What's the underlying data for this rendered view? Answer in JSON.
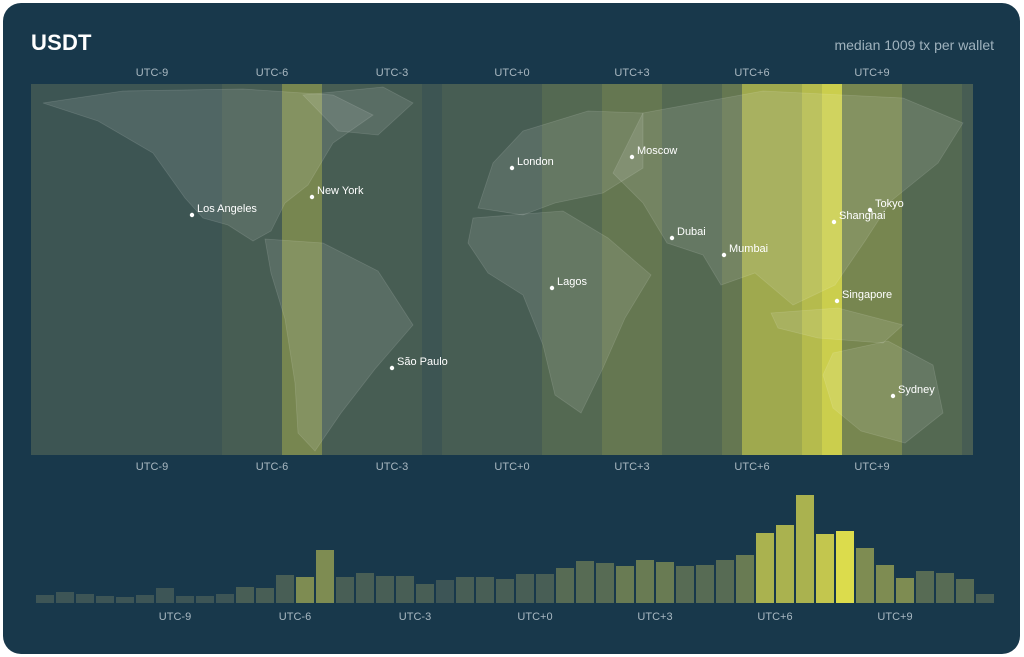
{
  "header": {
    "title": "USDT",
    "subtitle": "median 1009 tx per wallet"
  },
  "colors": {
    "background": "#18384b",
    "low": "#3e5553",
    "high": "#dcdc4c"
  },
  "chart_data": [
    {
      "type": "heatmap",
      "title": "",
      "x_axis_top_ticks": [
        "UTC-9",
        "UTC-6",
        "UTC-3",
        "UTC+0",
        "UTC+3",
        "UTC+6",
        "UTC+9"
      ],
      "x_axis_bottom_ticks": [
        "UTC-9",
        "UTC-6",
        "UTC-3",
        "UTC+0",
        "UTC+3",
        "UTC+6",
        "UTC+9"
      ],
      "utc_offsets": [
        -12,
        -11.5,
        -11,
        -10.5,
        -10,
        -9.5,
        -9,
        -8.5,
        -8,
        -7.5,
        -7,
        -6.5,
        -6,
        -5.5,
        -5,
        -4.5,
        -4,
        -3.5,
        -3,
        -2.5,
        -2,
        -1.5,
        -1,
        -0.5,
        0,
        0.5,
        1,
        1.5,
        2,
        2.5,
        3,
        3.5,
        4,
        4.5,
        5,
        5.5,
        6,
        6.5,
        7,
        7.5,
        8,
        8.5,
        9,
        9.5,
        10,
        10.5,
        11,
        11.5
      ],
      "intensity": [
        2,
        2,
        2,
        2,
        2,
        2,
        2,
        2,
        2,
        2,
        3,
        3,
        3,
        6,
        6,
        3,
        3,
        3,
        3,
        3,
        2,
        3,
        3,
        3,
        3,
        3,
        4,
        4,
        4,
        5,
        5,
        5,
        4,
        4,
        4,
        5,
        8,
        8,
        8,
        9,
        10,
        6,
        6,
        6,
        4,
        4,
        4,
        3
      ],
      "cities": [
        {
          "name": "Los Angeles",
          "utc": "UTC-8"
        },
        {
          "name": "New York",
          "utc": "UTC-5"
        },
        {
          "name": "São Paulo",
          "utc": "UTC-3"
        },
        {
          "name": "London",
          "utc": "UTC+0"
        },
        {
          "name": "Lagos",
          "utc": "UTC+1"
        },
        {
          "name": "Moscow",
          "utc": "UTC+3"
        },
        {
          "name": "Dubai",
          "utc": "UTC+4"
        },
        {
          "name": "Mumbai",
          "utc": "UTC+5:30"
        },
        {
          "name": "Singapore",
          "utc": "UTC+8"
        },
        {
          "name": "Shanghai",
          "utc": "UTC+8"
        },
        {
          "name": "Tokyo",
          "utc": "UTC+9"
        },
        {
          "name": "Sydney",
          "utc": "UTC+10"
        }
      ]
    },
    {
      "type": "bar",
      "title": "",
      "x_ticks": [
        "UTC-9",
        "UTC-6",
        "UTC-3",
        "UTC+0",
        "UTC+3",
        "UTC+6",
        "UTC+9"
      ],
      "categories": [
        -12,
        -11.5,
        -11,
        -10.5,
        -10,
        -9.5,
        -9,
        -8.5,
        -8,
        -7.5,
        -7,
        -6.5,
        -6,
        -5.5,
        -5,
        -4.5,
        -4,
        -3.5,
        -3,
        -2.5,
        -2,
        -1.5,
        -1,
        -0.5,
        0,
        0.5,
        1,
        1.5,
        2,
        2.5,
        3,
        3.5,
        4,
        4.5,
        5,
        5.5,
        6,
        6.5,
        7,
        7.5,
        8,
        8.5,
        9,
        9.5,
        10,
        10.5,
        11,
        11.5
      ],
      "values": [
        8,
        11,
        9,
        7,
        6,
        8,
        15,
        7,
        7,
        9,
        16,
        15,
        28,
        26,
        53,
        26,
        30,
        27,
        27,
        19,
        23,
        26,
        26,
        24,
        29,
        29,
        35,
        42,
        40,
        37,
        43,
        41,
        37,
        38,
        43,
        48,
        70,
        78,
        108,
        69,
        72,
        55,
        38,
        25,
        32,
        30,
        24,
        9
      ],
      "ylim": [
        0,
        110
      ]
    }
  ]
}
